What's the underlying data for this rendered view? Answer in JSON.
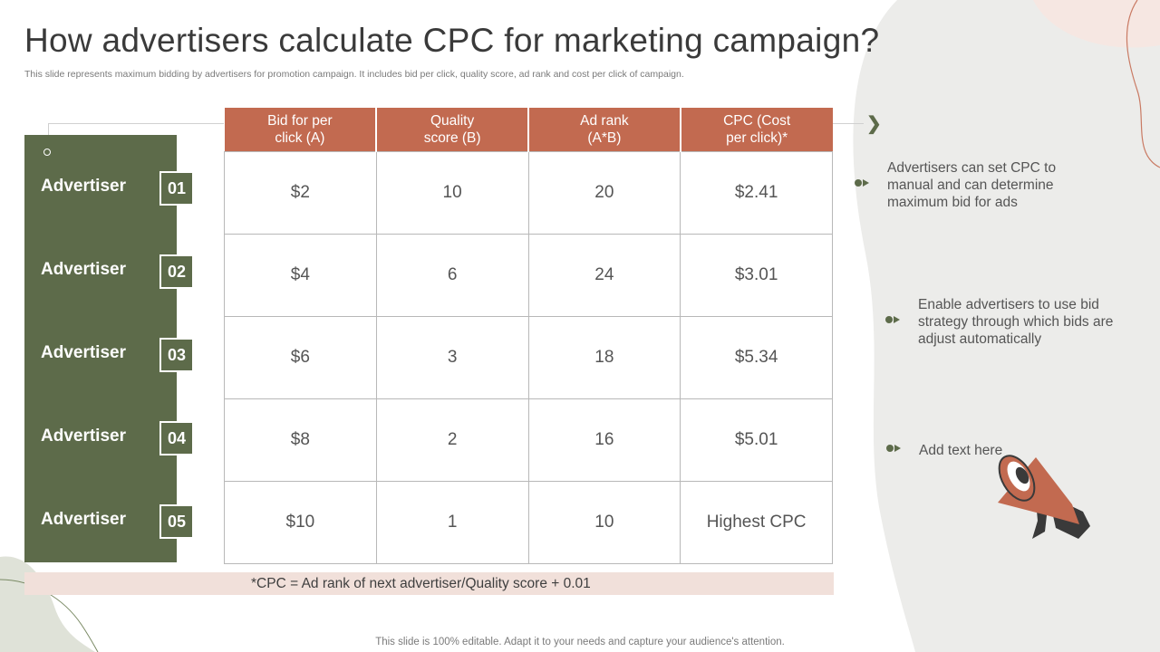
{
  "slide": {
    "title": "How advertisers calculate CPC for marketing campaign?",
    "subtitle": "This slide represents maximum bidding by advertisers for promotion campaign. It includes bid per click, quality score, ad rank and cost per click of campaign.",
    "footer": "This slide is 100% editable. Adapt it to your needs and capture your audience's attention."
  },
  "advertisers": [
    {
      "label": "Advertiser",
      "number": "01"
    },
    {
      "label": "Advertiser",
      "number": "02"
    },
    {
      "label": "Advertiser",
      "number": "03"
    },
    {
      "label": "Advertiser",
      "number": "04"
    },
    {
      "label": "Advertiser",
      "number": "05"
    }
  ],
  "table": {
    "headers": [
      {
        "line1": "Bid for per",
        "line2": "click (A)"
      },
      {
        "line1": "Quality",
        "line2": "score (B)"
      },
      {
        "line1": "Ad rank",
        "line2": "(A*B)"
      },
      {
        "line1": "CPC (Cost",
        "line2": "per click)*"
      }
    ],
    "rows": [
      [
        "$2",
        "10",
        "20",
        "$2.41"
      ],
      [
        "$4",
        "6",
        "24",
        "$3.01"
      ],
      [
        "$6",
        "3",
        "18",
        "$5.34"
      ],
      [
        "$8",
        "2",
        "16",
        "$5.01"
      ],
      [
        "$10",
        "1",
        "10",
        "Highest CPC"
      ]
    ]
  },
  "formula": "*CPC = Ad rank of next advertiser/Quality  score + 0.01",
  "notes": [
    {
      "lines": [
        "Advertisers can set CPC to",
        "manual and can determine",
        "maximum bid for ads"
      ]
    },
    {
      "lines": [
        "Enable advertisers to use bid",
        "strategy through which bids are",
        "adjust automatically"
      ]
    },
    {
      "lines": [
        "Add text here"
      ]
    }
  ],
  "colors": {
    "accent_green": "#5d6b4a",
    "accent_terracotta": "#c26a50",
    "formula_bg": "#f1e0da",
    "blob_grey": "#ececea",
    "blob_pink": "#f6e7e2"
  },
  "icons": [
    "megaphone-icon",
    "bullet-arrow-icon",
    "chevron-right-icon"
  ]
}
